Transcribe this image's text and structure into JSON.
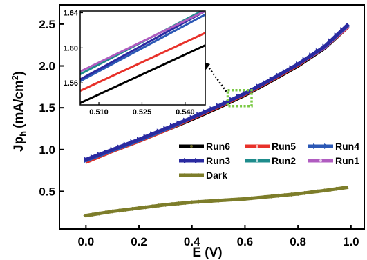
{
  "chart_data": {
    "type": "line",
    "xlabel": "E (V)",
    "ylabel_main": "Jp",
    "ylabel_sub": "h",
    "ylabel_unit": "(mA/cm",
    "ylabel_sup": "2",
    "ylabel_close": ")",
    "xlim": [
      -0.1,
      1.05
    ],
    "ylim": [
      0.05,
      2.73
    ],
    "xticks": [
      0.0,
      0.2,
      0.4,
      0.6,
      0.8,
      1.0
    ],
    "xtick_labels": [
      "0.0",
      "0.2",
      "0.4",
      "0.6",
      "0.8",
      "1.0"
    ],
    "yticks": [
      0.5,
      1.0,
      1.5,
      2.0,
      2.5
    ],
    "ytick_labels": [
      "0.5",
      "1.0",
      "1.5",
      "2.0",
      "2.5"
    ],
    "grid": false,
    "legend_placement": "center-right",
    "series": [
      {
        "name": "Run6",
        "color": "#000000",
        "marker_color": "#8a8a2a",
        "x": [
          0.0,
          0.1,
          0.2,
          0.3,
          0.4,
          0.5,
          0.6,
          0.7,
          0.8,
          0.9,
          0.99
        ],
        "y": [
          0.85,
          0.98,
          1.1,
          1.23,
          1.36,
          1.5,
          1.65,
          1.82,
          2.0,
          2.21,
          2.47
        ]
      },
      {
        "name": "Run5",
        "color": "#e8312a",
        "x": [
          0.0,
          0.1,
          0.2,
          0.3,
          0.4,
          0.5,
          0.6,
          0.7,
          0.8,
          0.9,
          0.99
        ],
        "y": [
          0.85,
          0.98,
          1.1,
          1.23,
          1.37,
          1.51,
          1.66,
          1.83,
          2.01,
          2.22,
          2.47
        ]
      },
      {
        "name": "Run4",
        "color": "#2b58b5",
        "x": [
          0.0,
          0.1,
          0.2,
          0.3,
          0.4,
          0.5,
          0.6,
          0.7,
          0.8,
          0.9,
          0.99
        ],
        "y": [
          0.87,
          0.99,
          1.11,
          1.24,
          1.38,
          1.52,
          1.67,
          1.84,
          2.02,
          2.23,
          2.49
        ]
      },
      {
        "name": "Run3",
        "color": "#2a2aa0",
        "x": [
          0.0,
          0.1,
          0.2,
          0.3,
          0.4,
          0.5,
          0.6,
          0.7,
          0.8,
          0.9,
          0.99
        ],
        "y": [
          0.88,
          1.0,
          1.12,
          1.25,
          1.38,
          1.52,
          1.67,
          1.84,
          2.02,
          2.23,
          2.5
        ]
      },
      {
        "name": "Run2",
        "color": "#1e8c8c",
        "x": [
          0.0,
          0.1,
          0.2,
          0.3,
          0.4,
          0.5,
          0.6,
          0.7,
          0.8,
          0.9,
          0.99
        ],
        "y": [
          0.87,
          0.99,
          1.11,
          1.24,
          1.38,
          1.52,
          1.67,
          1.84,
          2.02,
          2.23,
          2.49
        ]
      },
      {
        "name": "Run1",
        "color": "#b05cc0",
        "x": [
          0.0,
          0.1,
          0.2,
          0.3,
          0.4,
          0.5,
          0.6,
          0.7,
          0.8,
          0.9,
          0.99
        ],
        "y": [
          0.87,
          0.99,
          1.11,
          1.24,
          1.38,
          1.52,
          1.67,
          1.84,
          2.02,
          2.22,
          2.48
        ]
      },
      {
        "name": "Dark",
        "color": "#7d7d2a",
        "x": [
          0.0,
          0.1,
          0.2,
          0.3,
          0.4,
          0.5,
          0.6,
          0.7,
          0.8,
          0.9,
          0.99
        ],
        "y": [
          0.21,
          0.26,
          0.3,
          0.34,
          0.37,
          0.39,
          0.41,
          0.44,
          0.47,
          0.51,
          0.55
        ]
      }
    ],
    "inset": {
      "xlim": [
        0.5035,
        0.547
      ],
      "ylim": [
        1.535,
        1.642
      ],
      "xticks": [
        0.51,
        0.525,
        0.54
      ],
      "xtick_labels": [
        "0.510",
        "0.525",
        "0.540"
      ],
      "yticks": [
        1.56,
        1.6,
        1.64
      ],
      "ytick_labels": [
        "1.56",
        "1.60",
        "1.64"
      ],
      "series": [
        {
          "name": "Run6",
          "color": "#000000",
          "x": [
            0.5035,
            0.547
          ],
          "y": [
            1.537,
            1.603
          ]
        },
        {
          "name": "Run5",
          "color": "#e8312a",
          "x": [
            0.5035,
            0.547
          ],
          "y": [
            1.551,
            1.617
          ]
        },
        {
          "name": "Run4",
          "color": "#2b58b5",
          "x": [
            0.5035,
            0.547
          ],
          "y": [
            1.562,
            1.638
          ]
        },
        {
          "name": "Run3",
          "color": "#2a2aa0",
          "x": [
            0.5035,
            0.547
          ],
          "y": [
            1.564,
            1.642
          ]
        },
        {
          "name": "Run2",
          "color": "#1e8c8c",
          "x": [
            0.5035,
            0.547
          ],
          "y": [
            1.57,
            1.644
          ]
        },
        {
          "name": "Run1",
          "color": "#b05cc0",
          "x": [
            0.5035,
            0.547
          ],
          "y": [
            1.573,
            1.642
          ]
        }
      ]
    },
    "zoom_box": {
      "x": [
        0.535,
        0.625
      ],
      "y": [
        1.52,
        1.71
      ],
      "color": "#7ac943"
    }
  }
}
